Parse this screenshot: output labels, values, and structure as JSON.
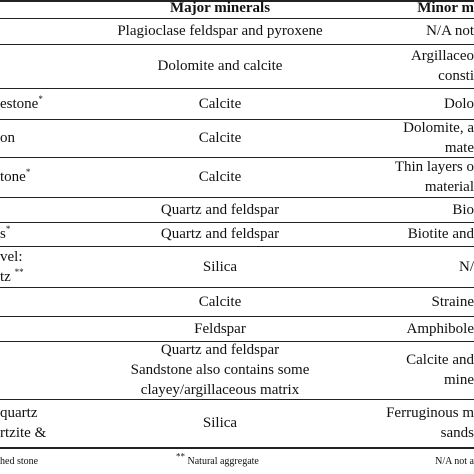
{
  "table": {
    "header": [
      "Major minerals",
      "Minor m"
    ],
    "rows": [
      {
        "c0": [],
        "c1": [
          "Plagioclase feldspar and pyroxene"
        ],
        "c2": [
          "N/A not"
        ]
      },
      {
        "c0": [],
        "c1": [
          "Dolomite and calcite"
        ],
        "c2": [
          "Argillaceo",
          "consti"
        ]
      },
      {
        "c0": [
          {
            "text": "estone",
            "mark": "*"
          }
        ],
        "c1": [
          "Calcite"
        ],
        "c2": [
          "Dolo"
        ]
      },
      {
        "c0": [
          {
            "text": "on"
          }
        ],
        "c1": [
          "Calcite"
        ],
        "c2": [
          "Dolomite, a",
          "mate"
        ]
      },
      {
        "c0": [
          {
            "text": "tone",
            "mark": "*"
          }
        ],
        "c1": [
          "Calcite"
        ],
        "c2": [
          "Thin layers o",
          "material"
        ]
      },
      {
        "c0": [],
        "c1": [
          "Quartz and feldspar"
        ],
        "c2": [
          "Bio"
        ]
      },
      {
        "c0": [
          {
            "text": "s",
            "mark": "*"
          }
        ],
        "c1": [
          "Quartz and feldspar"
        ],
        "c2": [
          "Biotite and"
        ]
      },
      {
        "c0": [
          {
            "text": "vel:"
          },
          {
            "text": "tz ",
            "mark": "**"
          }
        ],
        "c1": [
          "Silica"
        ],
        "c2": [
          "N/"
        ]
      },
      {
        "c0": [],
        "c1": [
          "Calcite"
        ],
        "c2": [
          "Straine"
        ]
      },
      {
        "c0": [],
        "c1": [
          "Feldspar"
        ],
        "c2": [
          "Amphibole"
        ]
      },
      {
        "c0": [],
        "c1": [
          "Quartz and feldspar",
          "Sandstone also contains some",
          "clayey/argillaceous matrix"
        ],
        "c2": [
          "Calcite and",
          "mine"
        ]
      },
      {
        "c0": [
          {
            "text": "quartz"
          },
          {
            "text": "rtzite &"
          }
        ],
        "c1": [
          "Silica"
        ],
        "c2": [
          "Ferruginous m",
          "sands"
        ]
      }
    ],
    "footnotes": [
      "hed stone",
      {
        "mark": "**",
        "text": " Natural aggregate"
      },
      "N/A not a"
    ]
  }
}
